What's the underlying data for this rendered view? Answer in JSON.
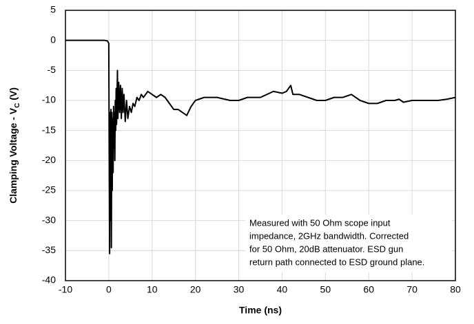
{
  "chart_data": {
    "type": "line",
    "xlabel": "Time (ns)",
    "ylabel": [
      "Clamping Voltage - V",
      "C",
      " (V)"
    ],
    "annotation": [
      "Measured with 50 Ohm scope input",
      "impedance, 2GHz bandwidth. Corrected",
      "for 50 Ohm, 20dB attenuator. ESD gun",
      "return path connected to ESD ground plane."
    ],
    "xlim": [
      -10,
      80
    ],
    "xticks": [
      -10,
      0,
      10,
      20,
      30,
      40,
      50,
      60,
      70,
      80
    ],
    "ylim": [
      -40,
      5
    ],
    "yticks": [
      -40,
      -35,
      -30,
      -25,
      -20,
      -15,
      -10,
      -5,
      0,
      5
    ],
    "grid": true,
    "series": [
      {
        "color": "#000000",
        "x": [
          -10,
          -1,
          -0.3,
          0,
          0.1,
          0.2,
          0.3,
          0.4,
          0.5,
          0.6,
          0.7,
          0.8,
          0.9,
          1.0,
          1.1,
          1.2,
          1.3,
          1.4,
          1.5,
          1.6,
          1.7,
          1.8,
          2.0,
          2.1,
          2.3,
          2.5,
          2.7,
          2.9,
          3.1,
          3.3,
          3.5,
          3.8,
          4.1,
          4.4,
          4.8,
          5.2,
          5.6,
          6,
          6.5,
          7,
          7.5,
          8,
          9,
          10,
          11,
          12,
          13,
          14,
          15,
          16,
          17,
          18,
          19,
          20,
          22,
          25,
          28,
          30,
          32,
          35,
          38,
          40,
          41,
          42,
          42.5,
          44,
          46,
          48,
          50,
          52,
          54,
          56,
          58,
          60,
          62,
          64,
          66,
          67,
          68,
          70,
          72,
          74,
          76,
          78,
          80
        ],
        "values": [
          0,
          0,
          -0.1,
          -0.5,
          -20,
          -35.5,
          -12,
          -30,
          -11.5,
          -34.5,
          -12,
          -25,
          -13,
          -22,
          -11,
          -18,
          -12,
          -20,
          -10,
          -15,
          -8,
          -14,
          -5,
          -13,
          -7,
          -12,
          -7.5,
          -13,
          -8,
          -12,
          -9,
          -13.5,
          -10,
          -13,
          -11,
          -12,
          -10.5,
          -11,
          -9.5,
          -10,
          -9,
          -9.5,
          -8.5,
          -9,
          -9.5,
          -9,
          -9.5,
          -10.5,
          -11.5,
          -11.5,
          -12,
          -12.5,
          -11,
          -10,
          -9.5,
          -9.5,
          -10,
          -10,
          -9.5,
          -9.5,
          -8.5,
          -8.8,
          -8.5,
          -7.5,
          -9,
          -9,
          -9.5,
          -10,
          -10,
          -9.5,
          -9.5,
          -9,
          -10,
          -10.5,
          -10.5,
          -10,
          -10,
          -9.8,
          -10.3,
          -10,
          -10,
          -10,
          -10,
          -9.8,
          -9.5
        ]
      }
    ]
  }
}
